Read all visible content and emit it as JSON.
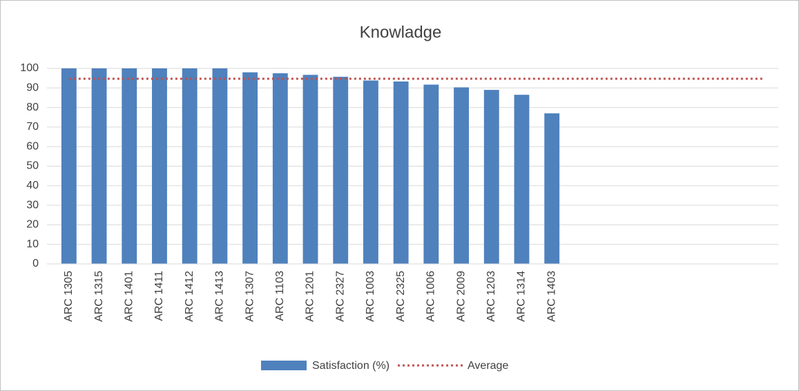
{
  "chart_data": {
    "type": "bar",
    "title": "Knowladge",
    "categories": [
      "ARC 1305",
      "ARC 1315",
      "ARC 1401",
      "ARC 1411",
      "ARC 1412",
      "ARC 1413",
      "ARC 1307",
      "ARC 1103",
      "ARC 1201",
      "ARC 2327",
      "ARC 1003",
      "ARC 2325",
      "ARC 1006",
      "ARC 2009",
      "ARC 1203",
      "ARC 1314",
      "ARC 1403",
      null,
      null,
      null,
      null,
      null,
      null,
      null
    ],
    "series": [
      {
        "name": "Satisfaction (%)",
        "type": "bar",
        "color": "#4f81bd",
        "values": [
          100,
          100,
          100,
          100,
          100,
          100,
          98,
          97.5,
          96.7,
          95.7,
          93.8,
          93.3,
          91.7,
          90.3,
          89,
          86.5,
          77,
          null,
          null,
          null,
          null,
          null,
          null,
          null
        ]
      },
      {
        "name": "Average",
        "type": "line",
        "style": "dotted",
        "color": "#c0504d",
        "values": [
          94.7,
          94.7,
          94.7,
          94.7,
          94.7,
          94.7,
          94.7,
          94.7,
          94.7,
          94.7,
          94.7,
          94.7,
          94.7,
          94.7,
          94.7,
          94.7,
          94.7,
          94.7,
          94.7,
          94.7,
          94.7,
          94.7,
          94.7,
          94.7
        ]
      }
    ],
    "ylim": [
      0,
      100
    ],
    "yticks": [
      0,
      10,
      20,
      30,
      40,
      50,
      60,
      70,
      80,
      90,
      100
    ],
    "grid": true,
    "legend": "bottom"
  }
}
